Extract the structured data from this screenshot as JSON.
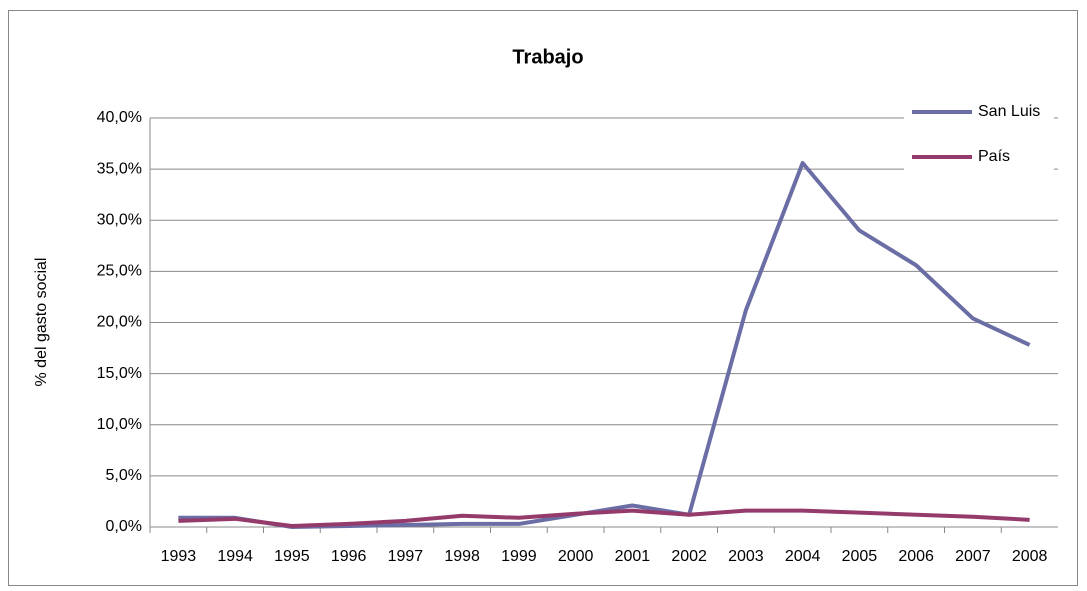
{
  "chart_data": {
    "type": "line",
    "title": "Trabajo",
    "y_label": "% del gasto social",
    "categories": [
      "1993",
      "1994",
      "1995",
      "1996",
      "1997",
      "1998",
      "1999",
      "2000",
      "2001",
      "2002",
      "2003",
      "2004",
      "2005",
      "2006",
      "2007",
      "2008"
    ],
    "series": [
      {
        "name": "San Luis",
        "color": "#6b6ea5",
        "values": [
          0.9,
          0.9,
          0.0,
          0.1,
          0.2,
          0.3,
          0.3,
          1.2,
          2.1,
          1.2,
          21.2,
          35.6,
          29.0,
          25.6,
          20.4,
          17.8
        ]
      },
      {
        "name": "País",
        "color": "#943b6b",
        "values": [
          0.6,
          0.8,
          0.1,
          0.3,
          0.6,
          1.1,
          0.9,
          1.3,
          1.6,
          1.2,
          1.6,
          1.6,
          1.4,
          1.2,
          1.0,
          0.7
        ]
      }
    ],
    "ylim": [
      0,
      40
    ],
    "yticks": [
      {
        "value": 0,
        "label": "0,0%"
      },
      {
        "value": 5,
        "label": "5,0%"
      },
      {
        "value": 10,
        "label": "10,0%"
      },
      {
        "value": 15,
        "label": "15,0%"
      },
      {
        "value": 20,
        "label": "20,0%"
      },
      {
        "value": 25,
        "label": "25,0%"
      },
      {
        "value": 30,
        "label": "30,0%"
      },
      {
        "value": 35,
        "label": "35,0%"
      },
      {
        "value": 40,
        "label": "40,0%"
      }
    ],
    "grid": true,
    "legend": "upper right"
  }
}
